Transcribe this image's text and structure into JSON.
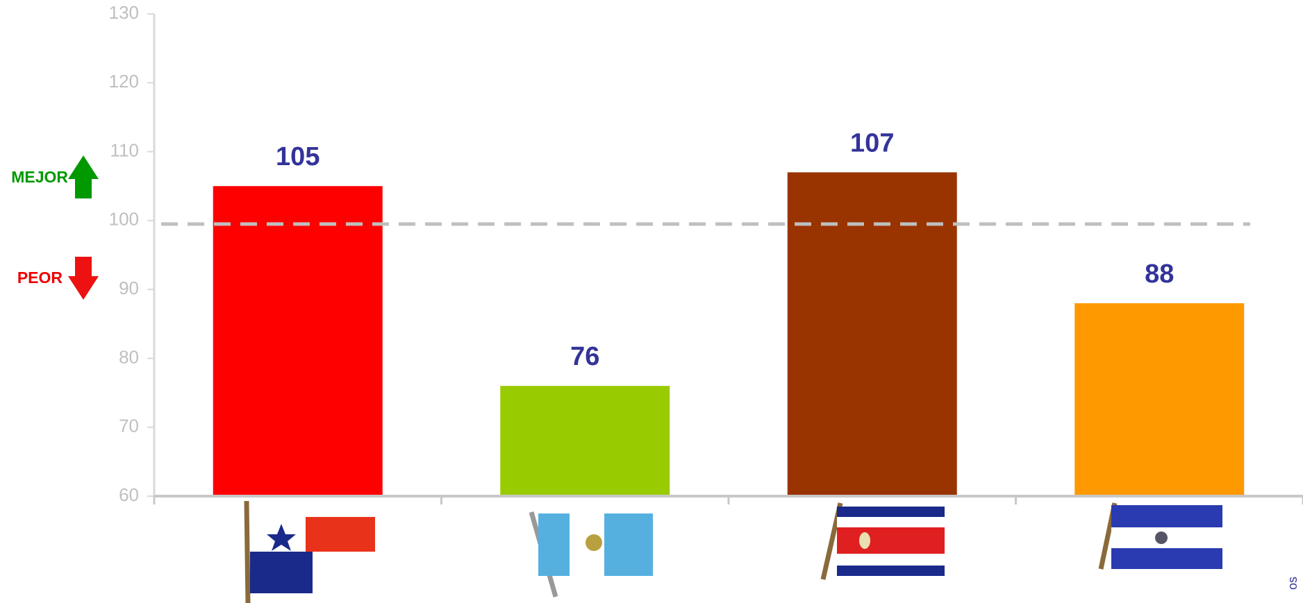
{
  "chart_data": {
    "type": "bar",
    "categories": [
      null,
      null,
      null,
      null
    ],
    "values": [
      105,
      76,
      107,
      88
    ],
    "colors": [
      "#ff0000",
      "#99cc00",
      "#993300",
      "#ff9900"
    ],
    "ylim": [
      60,
      130
    ],
    "yticks": [
      60,
      70,
      80,
      90,
      100,
      110,
      120,
      130
    ],
    "reference_line": 99.5,
    "annotations": {
      "better": "MEJOR",
      "worse": "PEOR"
    },
    "edge_text": "os"
  }
}
